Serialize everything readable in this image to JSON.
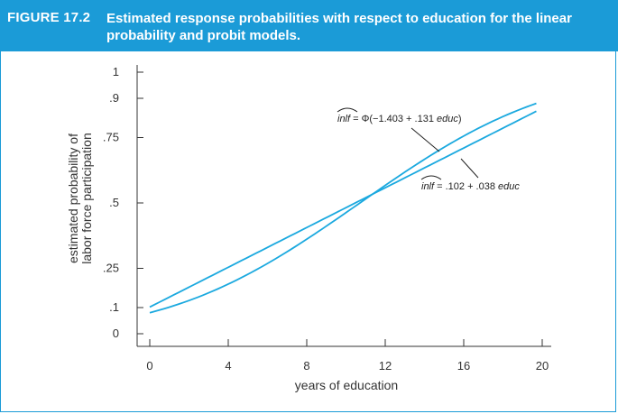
{
  "figure": {
    "label": "FIGURE 17.2",
    "caption": "Estimated response probabilities with respect to education for the linear probability and probit models."
  },
  "colors": {
    "header": "#1b9bd7",
    "curve": "#1ba9df",
    "axis": "#333333"
  },
  "chart_data": {
    "type": "line",
    "xlabel": "years of education",
    "ylabel_lines": [
      "estimated probability of",
      "labor force participation"
    ],
    "xlim": [
      0,
      20
    ],
    "ylim": [
      0,
      1
    ],
    "x_ticks": [
      0,
      4,
      8,
      12,
      16,
      20
    ],
    "y_ticks": [
      {
        "value": 0,
        "label": "0"
      },
      {
        "value": 0.1,
        "label": ".1"
      },
      {
        "value": 0.25,
        "label": ".25"
      },
      {
        "value": 0.5,
        "label": ".5"
      },
      {
        "value": 0.75,
        "label": ".75"
      },
      {
        "value": 0.9,
        "label": ".9"
      },
      {
        "value": 1,
        "label": "1"
      }
    ],
    "series": [
      {
        "model": "probit",
        "intercept": -1.403,
        "slope": 0.131,
        "x_range": [
          0,
          19.7
        ]
      },
      {
        "model": "linear",
        "intercept": 0.102,
        "slope": 0.038,
        "x_range": [
          0,
          19.7
        ]
      }
    ],
    "annotations": {
      "probit": {
        "lhs": "inlf",
        "eq": " = Φ(−1.403 + .131 ",
        "var": "educ",
        "close": ")"
      },
      "linear": {
        "lhs": "inlf",
        "eq": " = .102 + .038 ",
        "var": "educ"
      }
    }
  }
}
